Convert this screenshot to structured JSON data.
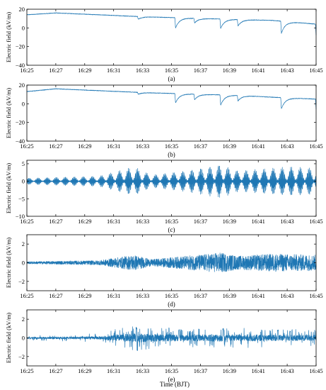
{
  "figure": {
    "xlabel": "Time (BJT)",
    "trace_color": "#1f77b4"
  },
  "chart_data": [
    {
      "type": "line",
      "panel_label": "(a)",
      "ylabel": "Electric field (kV/m)",
      "ylim": [
        -40,
        20
      ],
      "yticks": [
        20,
        0,
        -20,
        -40
      ],
      "ytick_labels": [
        "20",
        "0",
        "−20",
        "−40"
      ],
      "xlim": [
        "16:25",
        "16:45"
      ],
      "xtick_labels": [
        "16:25",
        "16:27",
        "16:29",
        "16:31",
        "16:33",
        "16:35",
        "16:37",
        "16:39",
        "16:41",
        "16:43",
        "16:45"
      ],
      "kind": "field",
      "baseline": [
        [
          16.416,
          14
        ],
        [
          16.45,
          16
        ],
        [
          16.55,
          12
        ],
        [
          16.62,
          10
        ],
        [
          16.66,
          9
        ],
        [
          16.7,
          8
        ],
        [
          16.75,
          4
        ],
        [
          16.8,
          6
        ],
        [
          16.85,
          5
        ],
        [
          16.9,
          4
        ],
        [
          16.92,
          2
        ],
        [
          16.95,
          0
        ],
        [
          16.98,
          0
        ],
        [
          17.0,
          -1
        ],
        [
          17.05,
          -3
        ],
        [
          17.1,
          -3
        ],
        [
          17.15,
          -2
        ],
        [
          17.2,
          -2
        ],
        [
          17.25,
          0
        ],
        [
          17.3,
          -1
        ],
        [
          17.33,
          2
        ],
        [
          17.36,
          -1
        ],
        [
          17.4,
          0
        ],
        [
          17.42,
          -2
        ],
        [
          17.45,
          -5
        ],
        [
          17.5,
          -2
        ]
      ],
      "dips": [
        [
          16.545,
          3
        ],
        [
          16.588,
          11
        ],
        [
          16.61,
          5
        ],
        [
          16.64,
          10
        ],
        [
          16.66,
          7
        ],
        [
          16.71,
          13
        ],
        [
          16.75,
          12
        ],
        [
          16.8,
          11
        ],
        [
          16.84,
          14
        ],
        [
          16.89,
          12
        ],
        [
          16.93,
          10
        ],
        [
          16.958,
          12
        ],
        [
          16.965,
          26
        ],
        [
          17.02,
          10
        ],
        [
          17.03,
          18
        ],
        [
          17.07,
          18
        ],
        [
          17.14,
          10
        ],
        [
          17.155,
          22
        ],
        [
          17.19,
          16
        ],
        [
          17.22,
          14
        ],
        [
          17.245,
          20
        ],
        [
          17.275,
          13
        ],
        [
          17.29,
          16
        ],
        [
          17.33,
          20
        ],
        [
          17.355,
          25
        ],
        [
          17.37,
          15
        ],
        [
          17.395,
          14
        ],
        [
          17.43,
          15
        ],
        [
          17.45,
          18
        ],
        [
          17.475,
          24
        ],
        [
          17.485,
          20
        ],
        [
          17.5,
          15
        ]
      ]
    },
    {
      "type": "line",
      "panel_label": "(b)",
      "ylabel": "Electric field (kV/m)",
      "ylim": [
        -40,
        20
      ],
      "yticks": [
        20,
        0,
        -20,
        -40
      ],
      "ytick_labels": [
        "20",
        "0",
        "−20",
        "−40"
      ],
      "xlim": [
        "16:25",
        "16:45"
      ],
      "xtick_labels": [
        "16:25",
        "16:27",
        "16:29",
        "16:31",
        "16:33",
        "16:35",
        "16:37",
        "16:39",
        "16:41",
        "16:43",
        "16:45"
      ],
      "kind": "field",
      "baseline": [
        [
          16.416,
          13
        ],
        [
          16.45,
          16
        ],
        [
          16.5,
          14
        ],
        [
          16.55,
          12
        ],
        [
          16.62,
          10
        ],
        [
          16.66,
          9
        ],
        [
          16.7,
          7
        ],
        [
          16.75,
          5
        ],
        [
          16.8,
          6
        ],
        [
          16.85,
          4
        ],
        [
          16.9,
          3
        ],
        [
          16.92,
          2
        ],
        [
          16.95,
          -2
        ],
        [
          16.98,
          0
        ],
        [
          17.0,
          -1
        ],
        [
          17.05,
          -2
        ],
        [
          17.1,
          -2
        ],
        [
          17.15,
          -1
        ],
        [
          17.2,
          -3
        ],
        [
          17.25,
          0
        ],
        [
          17.3,
          -2
        ],
        [
          17.33,
          1
        ],
        [
          17.36,
          -2
        ],
        [
          17.4,
          -1
        ],
        [
          17.42,
          -3
        ],
        [
          17.45,
          -4
        ],
        [
          17.5,
          -2
        ]
      ],
      "dips": [
        [
          16.545,
          2
        ],
        [
          16.588,
          10
        ],
        [
          16.61,
          6
        ],
        [
          16.64,
          11
        ],
        [
          16.66,
          6
        ],
        [
          16.71,
          12
        ],
        [
          16.75,
          11
        ],
        [
          16.8,
          12
        ],
        [
          16.84,
          14
        ],
        [
          16.89,
          11
        ],
        [
          16.93,
          9
        ],
        [
          16.958,
          10
        ],
        [
          16.965,
          20
        ],
        [
          17.02,
          11
        ],
        [
          17.03,
          16
        ],
        [
          17.07,
          14
        ],
        [
          17.14,
          10
        ],
        [
          17.155,
          20
        ],
        [
          17.19,
          14
        ],
        [
          17.22,
          15
        ],
        [
          17.245,
          18
        ],
        [
          17.275,
          14
        ],
        [
          17.29,
          15
        ],
        [
          17.33,
          15
        ],
        [
          17.355,
          22
        ],
        [
          17.37,
          14
        ],
        [
          17.395,
          16
        ],
        [
          17.43,
          16
        ],
        [
          17.45,
          22
        ],
        [
          17.475,
          30
        ],
        [
          17.485,
          18
        ],
        [
          17.5,
          14
        ]
      ]
    },
    {
      "type": "line",
      "panel_label": "(c)",
      "ylabel": "Electric field (kV/m)",
      "ylim": [
        -10,
        6
      ],
      "yticks": [
        5,
        0,
        -5,
        -10
      ],
      "ytick_labels": [
        "5",
        "0",
        "−5",
        "−10"
      ],
      "xlim": [
        "16:25",
        "16:45"
      ],
      "xtick_labels": [
        "16:25",
        "16:27",
        "16:29",
        "16:31",
        "16:33",
        "16:35",
        "16:37",
        "16:39",
        "16:41",
        "16:43",
        "16:45"
      ],
      "kind": "osc",
      "amplitude": 6,
      "cycles": 260,
      "envelope": [
        [
          16.416,
          0.15
        ],
        [
          16.5,
          0.25
        ],
        [
          16.54,
          0.7
        ],
        [
          16.56,
          0.3
        ],
        [
          16.6,
          0.5
        ],
        [
          16.64,
          0.8
        ],
        [
          16.66,
          0.5
        ],
        [
          16.72,
          0.7
        ],
        [
          16.76,
          0.6
        ],
        [
          16.8,
          0.5
        ],
        [
          16.84,
          0.7
        ],
        [
          16.88,
          0.55
        ],
        [
          16.92,
          0.4
        ],
        [
          16.96,
          0.8
        ],
        [
          16.98,
          0.5
        ],
        [
          17.02,
          0.6
        ],
        [
          17.06,
          0.5
        ],
        [
          17.1,
          0.3
        ],
        [
          17.14,
          0.5
        ],
        [
          17.16,
          0.7
        ],
        [
          17.2,
          0.6
        ],
        [
          17.24,
          0.65
        ],
        [
          17.27,
          1.0
        ],
        [
          17.3,
          0.8
        ],
        [
          17.33,
          0.95
        ],
        [
          17.36,
          0.85
        ],
        [
          17.4,
          0.7
        ],
        [
          17.43,
          0.85
        ],
        [
          17.46,
          0.9
        ],
        [
          17.48,
          0.8
        ],
        [
          17.5,
          0.7
        ]
      ]
    },
    {
      "type": "line",
      "panel_label": "(d)",
      "ylabel": "Electric field (kV/m)",
      "ylim": [
        -3,
        3
      ],
      "yticks": [
        2,
        0,
        -2
      ],
      "ytick_labels": [
        "2",
        "0",
        "−2"
      ],
      "xlim": [
        "16:25",
        "16:45"
      ],
      "xtick_labels": [
        "16:25",
        "16:27",
        "16:29",
        "16:31",
        "16:33",
        "16:35",
        "16:37",
        "16:39",
        "16:41",
        "16:43",
        "16:45"
      ],
      "kind": "noise",
      "amplitude": 2.4,
      "envelope": [
        [
          16.416,
          0.05
        ],
        [
          16.5,
          0.1
        ],
        [
          16.54,
          0.35
        ],
        [
          16.56,
          0.15
        ],
        [
          16.6,
          0.3
        ],
        [
          16.64,
          0.45
        ],
        [
          16.66,
          0.3
        ],
        [
          16.7,
          0.4
        ],
        [
          16.75,
          0.35
        ],
        [
          16.8,
          0.3
        ],
        [
          16.84,
          0.35
        ],
        [
          16.88,
          0.25
        ],
        [
          16.92,
          0.15
        ],
        [
          16.95,
          0.5
        ],
        [
          16.98,
          0.45
        ],
        [
          17.02,
          0.55
        ],
        [
          17.06,
          0.5
        ],
        [
          17.1,
          0.15
        ],
        [
          17.14,
          0.3
        ],
        [
          17.16,
          0.25
        ],
        [
          17.2,
          0.35
        ],
        [
          17.24,
          0.4
        ],
        [
          17.27,
          0.95
        ],
        [
          17.3,
          0.85
        ],
        [
          17.33,
          0.75
        ],
        [
          17.36,
          0.45
        ],
        [
          17.4,
          0.7
        ],
        [
          17.42,
          0.6
        ],
        [
          17.46,
          0.5
        ],
        [
          17.48,
          0.35
        ],
        [
          17.5,
          0.3
        ]
      ]
    },
    {
      "type": "line",
      "panel_label": "(e)",
      "ylabel": "Electric field (kV/m)",
      "ylim": [
        -3,
        3
      ],
      "yticks": [
        2,
        0,
        -2
      ],
      "ytick_labels": [
        "2",
        "0",
        "−2"
      ],
      "xlim": [
        "16:25",
        "16:45"
      ],
      "xtick_labels": [
        "16:25",
        "16:27",
        "16:29",
        "16:31",
        "16:33",
        "16:35",
        "16:37",
        "16:39",
        "16:41",
        "16:43",
        "16:45"
      ],
      "kind": "spiky",
      "amplitude": 2.6,
      "envelope": [
        [
          16.416,
          0.05
        ],
        [
          16.5,
          0.1
        ],
        [
          16.54,
          0.3
        ],
        [
          16.6,
          0.2
        ],
        [
          16.64,
          0.25
        ],
        [
          16.7,
          0.2
        ],
        [
          16.75,
          0.2
        ],
        [
          16.8,
          0.15
        ],
        [
          16.85,
          0.2
        ],
        [
          16.9,
          0.15
        ],
        [
          16.95,
          0.25
        ],
        [
          17.0,
          0.2
        ],
        [
          17.05,
          0.15
        ],
        [
          17.1,
          0.15
        ],
        [
          17.15,
          0.2
        ],
        [
          17.2,
          0.2
        ],
        [
          17.25,
          0.25
        ],
        [
          17.3,
          0.3
        ],
        [
          17.35,
          0.3
        ],
        [
          17.4,
          0.25
        ],
        [
          17.45,
          0.3
        ],
        [
          17.5,
          0.25
        ]
      ],
      "spikes": [
        [
          16.543,
          0.45
        ],
        [
          16.592,
          0.35
        ],
        [
          16.643,
          0.4
        ],
        [
          16.706,
          0.35
        ],
        [
          16.72,
          0.3
        ],
        [
          16.8,
          0.3
        ],
        [
          16.84,
          0.3
        ],
        [
          16.965,
          0.9
        ],
        [
          16.97,
          -0.7
        ],
        [
          17.032,
          0.5
        ],
        [
          17.06,
          0.4
        ],
        [
          17.14,
          0.4
        ],
        [
          17.21,
          0.35
        ],
        [
          17.268,
          0.95
        ],
        [
          17.275,
          -0.9
        ],
        [
          17.31,
          0.8
        ],
        [
          17.32,
          -0.5
        ],
        [
          17.355,
          0.7
        ],
        [
          17.37,
          0.5
        ],
        [
          17.395,
          0.45
        ],
        [
          17.43,
          0.4
        ],
        [
          17.475,
          0.5
        ],
        [
          17.49,
          0.85
        ],
        [
          17.495,
          -0.6
        ]
      ]
    }
  ]
}
